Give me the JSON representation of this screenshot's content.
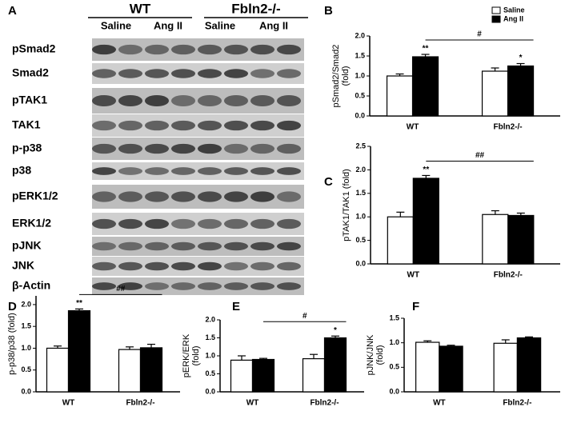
{
  "blot": {
    "panel": "A",
    "groups": [
      "WT",
      "Fbln2-/-"
    ],
    "conditions": [
      "Saline",
      "Ang II",
      "Saline",
      "Ang II"
    ],
    "rows": [
      "pSmad2",
      "Smad2",
      "pTAK1",
      "TAK1",
      "p-p38",
      "p38",
      "pERK1/2",
      "ERK1/2",
      "pJNK",
      "JNK",
      "β-Actin"
    ]
  },
  "chart_data": [
    {
      "type": "bar",
      "panel": "B",
      "ylabel": [
        "pSmad2/Smad2",
        "(fold)"
      ],
      "categories": [
        "WT",
        "Fbln2-/-"
      ],
      "ylim": [
        0,
        2.0
      ],
      "yticks": [
        {
          "value": 0,
          "label": "0.0"
        },
        0.5,
        {
          "value": 1,
          "label": "1.0"
        },
        1.5,
        {
          "value": 2,
          "label": "2.0"
        }
      ],
      "legend": "top-right",
      "comparison": "#",
      "series": [
        {
          "name": "Saline",
          "color": "#ffffff",
          "values": [
            1.0,
            1.12
          ],
          "errors": [
            0.05,
            0.08
          ]
        },
        {
          "name": "Ang II",
          "color": "#000000",
          "values": [
            1.48,
            1.25
          ],
          "errors": [
            0.06,
            0.06
          ],
          "sig": [
            "**",
            "*"
          ]
        }
      ]
    },
    {
      "type": "bar",
      "panel": "C",
      "ylabel": [
        "pTAK1/TAK1 (fold)"
      ],
      "categories": [
        "WT",
        "Fbln2-/-"
      ],
      "ylim": [
        0,
        2.5
      ],
      "yticks": [
        {
          "value": 0,
          "label": "0.0"
        },
        0.5,
        {
          "value": 1,
          "label": "1.0"
        },
        1.5,
        {
          "value": 2,
          "label": "2.0"
        },
        2.5
      ],
      "comparison": "##",
      "series": [
        {
          "name": "Saline",
          "color": "#ffffff",
          "values": [
            1.0,
            1.05
          ],
          "errors": [
            0.1,
            0.08
          ]
        },
        {
          "name": "Ang II",
          "color": "#000000",
          "values": [
            1.82,
            1.03
          ],
          "errors": [
            0.06,
            0.05
          ],
          "sig": [
            "**",
            null
          ]
        }
      ]
    },
    {
      "type": "bar",
      "panel": "D",
      "ylabel": [
        "p-p38/p38 (fold)"
      ],
      "categories": [
        "WT",
        "Fbln2-/-"
      ],
      "ylim": [
        0,
        2.2
      ],
      "yticks": [
        {
          "value": 0,
          "label": "0.0"
        },
        0.5,
        {
          "value": 1,
          "label": "1.0"
        },
        1.5,
        {
          "value": 2,
          "label": "2.0"
        }
      ],
      "comparison": "##",
      "series": [
        {
          "name": "Saline",
          "color": "#ffffff",
          "values": [
            1.0,
            0.97
          ],
          "errors": [
            0.05,
            0.06
          ]
        },
        {
          "name": "Ang II",
          "color": "#000000",
          "values": [
            1.86,
            1.01
          ],
          "errors": [
            0.04,
            0.08
          ],
          "sig": [
            "**",
            null
          ]
        }
      ]
    },
    {
      "type": "bar",
      "panel": "E",
      "ylabel": [
        "pERK/ERK",
        "(fold)"
      ],
      "categories": [
        "WT",
        "Fbln2-/-"
      ],
      "ylim": [
        0,
        2.0
      ],
      "yticks": [
        {
          "value": 0,
          "label": "0.0"
        },
        0.5,
        {
          "value": 1,
          "label": "1.0"
        },
        1.5,
        {
          "value": 2,
          "label": "2.0"
        }
      ],
      "comparison": "#",
      "series": [
        {
          "name": "Saline",
          "color": "#ffffff",
          "values": [
            0.88,
            0.92
          ],
          "errors": [
            0.12,
            0.12
          ]
        },
        {
          "name": "Ang II",
          "color": "#000000",
          "values": [
            0.9,
            1.5
          ],
          "errors": [
            0.03,
            0.05
          ],
          "sig": [
            null,
            "*"
          ]
        }
      ]
    },
    {
      "type": "bar",
      "panel": "F",
      "ylabel": [
        "pJNK/JNK",
        "(fold)"
      ],
      "categories": [
        "WT",
        "Fbln2-/-"
      ],
      "ylim": [
        0,
        1.5
      ],
      "yticks": [
        {
          "value": 0,
          "label": "0.0"
        },
        0.5,
        {
          "value": 1,
          "label": "1.0"
        },
        1.5
      ],
      "series": [
        {
          "name": "Saline",
          "color": "#ffffff",
          "values": [
            1.01,
            0.99
          ],
          "errors": [
            0.03,
            0.07
          ]
        },
        {
          "name": "Ang II",
          "color": "#000000",
          "values": [
            0.93,
            1.1
          ],
          "errors": [
            0.02,
            0.02
          ]
        }
      ]
    }
  ]
}
